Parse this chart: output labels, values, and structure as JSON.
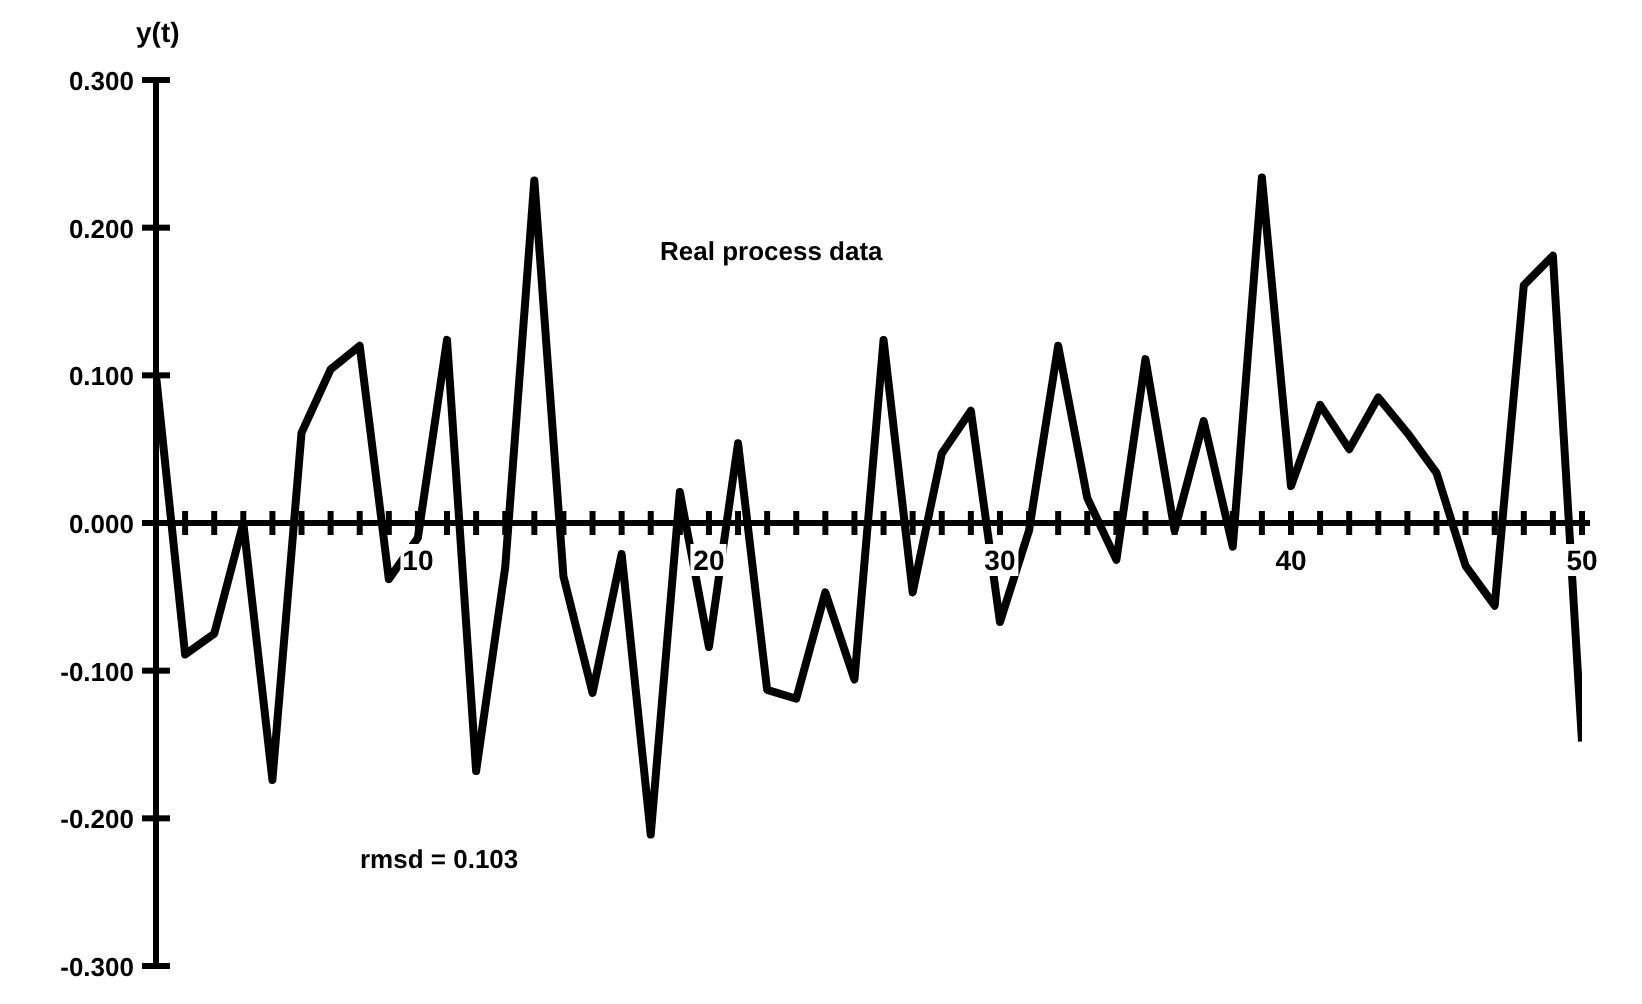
{
  "chart_data": {
    "type": "line",
    "ylabel": "y(t)",
    "annotations": [
      "Real process data",
      "rmsd = 0.103"
    ],
    "x": [
      1,
      2,
      3,
      4,
      5,
      6,
      7,
      8,
      9,
      10,
      11,
      12,
      13,
      14,
      15,
      16,
      17,
      18,
      19,
      20,
      21,
      22,
      23,
      24,
      25,
      26,
      27,
      28,
      29,
      30,
      31,
      32,
      33,
      34,
      35,
      36,
      37,
      38,
      39,
      40,
      41,
      42,
      43,
      44,
      45,
      46,
      47,
      48,
      49,
      50
    ],
    "series": [
      {
        "color": "#000000",
        "values": [
          0.1,
          -0.089,
          -0.075,
          0.0,
          -0.174,
          0.061,
          0.104,
          0.12,
          -0.038,
          -0.01,
          0.124,
          -0.168,
          -0.03,
          0.232,
          -0.036,
          -0.115,
          -0.021,
          -0.211,
          0.021,
          -0.084,
          0.054,
          -0.113,
          -0.119,
          -0.047,
          -0.106,
          0.124,
          -0.047,
          0.047,
          0.076,
          -0.067,
          -0.005,
          0.12,
          0.017,
          -0.025,
          0.111,
          -0.005,
          0.069,
          -0.016,
          0.234,
          0.025,
          0.08,
          0.05,
          0.085,
          0.061,
          0.034,
          -0.029,
          -0.056,
          0.161,
          0.181,
          -0.148
        ]
      }
    ],
    "xlim": [
      1,
      50
    ],
    "xticks": [
      {
        "value": 1,
        "label": null
      },
      {
        "value": 2,
        "label": null
      },
      {
        "value": 3,
        "label": null
      },
      {
        "value": 4,
        "label": null
      },
      {
        "value": 5,
        "label": null
      },
      {
        "value": 6,
        "label": null
      },
      {
        "value": 7,
        "label": null
      },
      {
        "value": 8,
        "label": null
      },
      {
        "value": 9,
        "label": null
      },
      10,
      {
        "value": 11,
        "label": null
      },
      {
        "value": 12,
        "label": null
      },
      {
        "value": 13,
        "label": null
      },
      {
        "value": 14,
        "label": null
      },
      {
        "value": 15,
        "label": null
      },
      {
        "value": 16,
        "label": null
      },
      {
        "value": 17,
        "label": null
      },
      {
        "value": 18,
        "label": null
      },
      {
        "value": 19,
        "label": null
      },
      20,
      {
        "value": 21,
        "label": null
      },
      {
        "value": 22,
        "label": null
      },
      {
        "value": 23,
        "label": null
      },
      {
        "value": 24,
        "label": null
      },
      {
        "value": 25,
        "label": null
      },
      {
        "value": 26,
        "label": null
      },
      {
        "value": 27,
        "label": null
      },
      {
        "value": 28,
        "label": null
      },
      {
        "value": 29,
        "label": null
      },
      30,
      {
        "value": 31,
        "label": null
      },
      {
        "value": 32,
        "label": null
      },
      {
        "value": 33,
        "label": null
      },
      {
        "value": 34,
        "label": null
      },
      {
        "value": 35,
        "label": null
      },
      {
        "value": 36,
        "label": null
      },
      {
        "value": 37,
        "label": null
      },
      {
        "value": 38,
        "label": null
      },
      {
        "value": 39,
        "label": null
      },
      40,
      {
        "value": 41,
        "label": null
      },
      {
        "value": 42,
        "label": null
      },
      {
        "value": 43,
        "label": null
      },
      {
        "value": 44,
        "label": null
      },
      {
        "value": 45,
        "label": null
      },
      {
        "value": 46,
        "label": null
      },
      {
        "value": 47,
        "label": null
      },
      {
        "value": 48,
        "label": null
      },
      {
        "value": 49,
        "label": null
      },
      50
    ],
    "ylim": [
      -0.3,
      0.3
    ],
    "yticks": [
      {
        "value": -0.3,
        "label": "-0.300"
      },
      {
        "value": -0.2,
        "label": "-0.200"
      },
      {
        "value": -0.1,
        "label": "-0.100"
      },
      {
        "value": 0,
        "label": "0.000"
      },
      {
        "value": 0.1,
        "label": "0.100"
      },
      {
        "value": 0.2,
        "label": "0.200"
      },
      {
        "value": 0.3,
        "label": "0.300"
      }
    ],
    "grid": false,
    "legend": false,
    "marker": "none",
    "line_style": "solid"
  }
}
